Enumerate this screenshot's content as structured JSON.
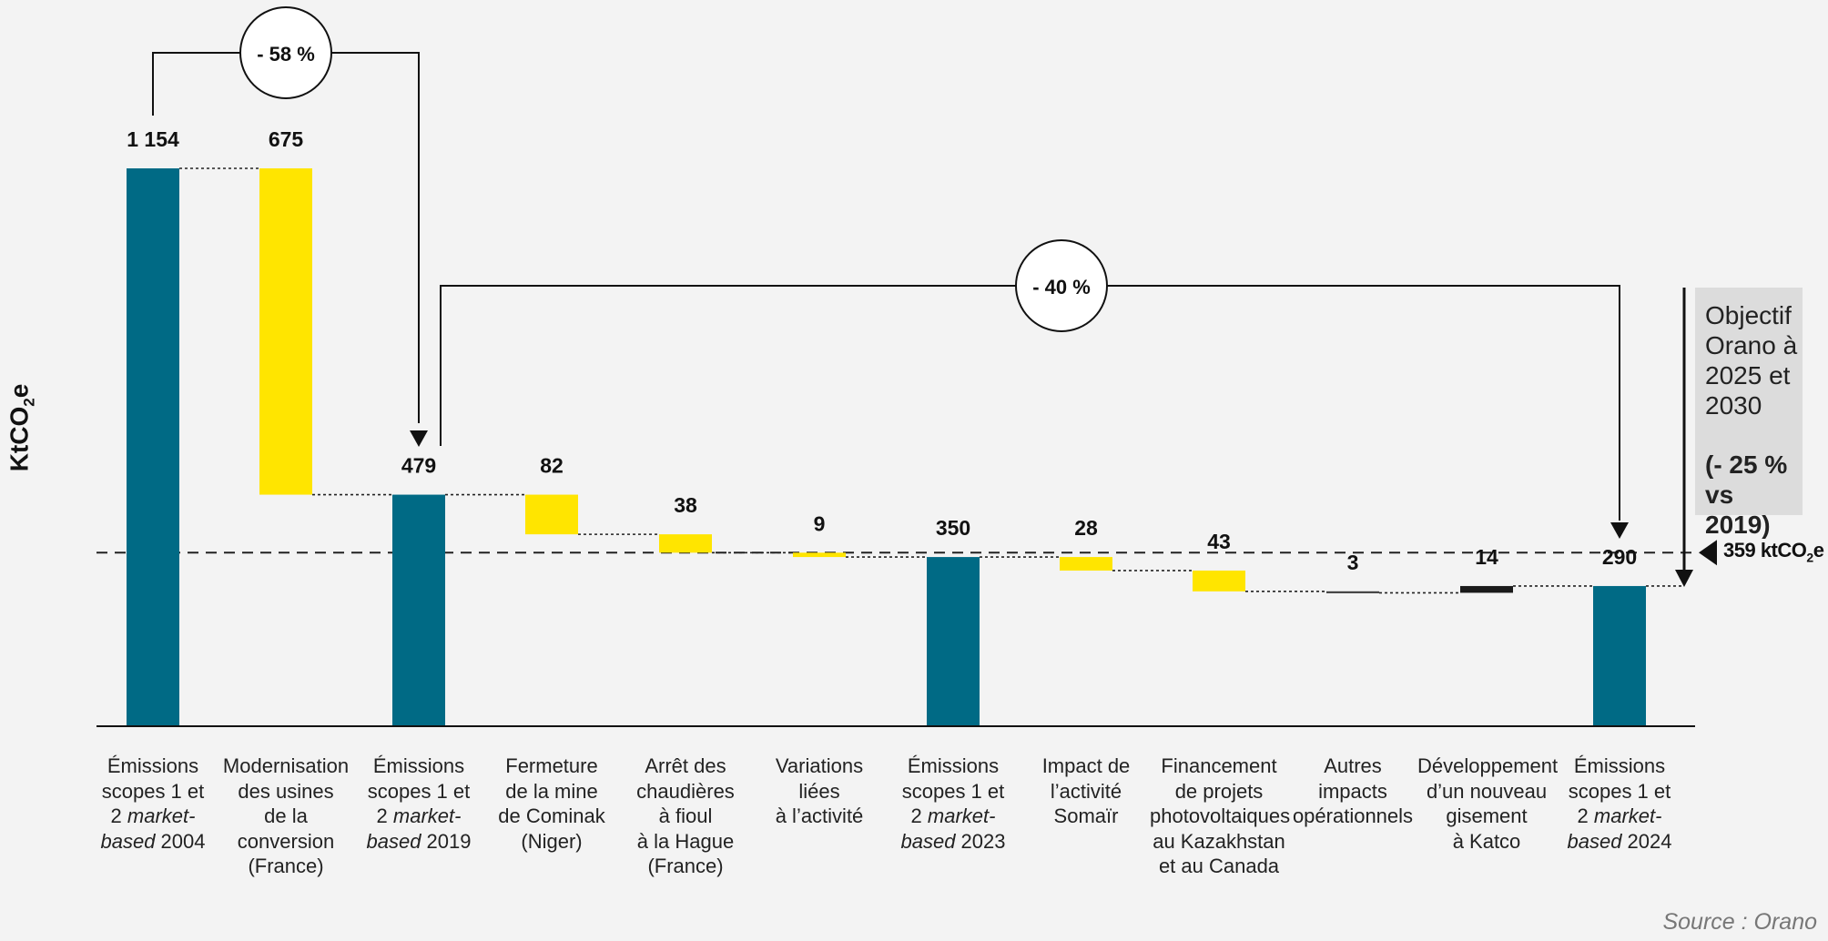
{
  "chart_data": {
    "type": "bar",
    "subtype": "waterfall",
    "ylabel": "KtCO2e",
    "categories": [
      {
        "label": "Émissions\nscopes 1 et\n2 ",
        "label_italic": "market-",
        "label_italic2": "based",
        "label_tail": " 2004",
        "value": 1154,
        "display": "1 154",
        "kind": "total"
      },
      {
        "label": "Modernisation\ndes usines\nde la\nconversion\n(France)",
        "value": 675,
        "display": "675",
        "kind": "decrease"
      },
      {
        "label": "Émissions\nscopes 1 et\n2 ",
        "label_italic": "market-",
        "label_italic2": "based",
        "label_tail": " 2019",
        "value": 479,
        "display": "479",
        "kind": "total"
      },
      {
        "label": "Fermeture\nde la mine\nde Cominak\n(Niger)",
        "value": 82,
        "display": "82",
        "kind": "decrease"
      },
      {
        "label": "Arrêt des\nchaudières\nà fioul\nà la Hague\n(France)",
        "value": 38,
        "display": "38",
        "kind": "decrease"
      },
      {
        "label": "Variations\nliées\nà l’activité",
        "value": 9,
        "display": "9",
        "kind": "decrease"
      },
      {
        "label": "Émissions\nscopes 1 et\n2 ",
        "label_italic": "market-",
        "label_italic2": "based",
        "label_tail": " 2023",
        "value": 350,
        "display": "350",
        "kind": "total"
      },
      {
        "label": "Impact de\nl’activité\nSomaïr",
        "value": 28,
        "display": "28",
        "kind": "decrease"
      },
      {
        "label": "Financement\nde projets\nphotovoltaiques\nau Kazakhstan\net au Canada",
        "value": 43,
        "display": "43",
        "kind": "decrease"
      },
      {
        "label": "Autres\nimpacts\nopérationnels",
        "value": 3,
        "display": "3",
        "kind": "decrease-other"
      },
      {
        "label": "Développement\nd’un nouveau\ngisement\nà Katco",
        "value": 14,
        "display": "14",
        "kind": "increase"
      },
      {
        "label": "Émissions\nscopes 1 et\n2 ",
        "label_italic": "market-",
        "label_italic2": "based",
        "label_tail": " 2024",
        "value": 290,
        "display": "290",
        "kind": "total"
      }
    ],
    "reference_line": {
      "value": 359,
      "label": "359 ktCO",
      "label_sub": "2",
      "label_tail": "e"
    },
    "annotations": [
      {
        "text": "- 58 %",
        "from": 0,
        "to": 2
      },
      {
        "text": "- 40 %",
        "from": 2,
        "to": 11
      }
    ],
    "target": {
      "line1": "Objectif Orano à 2025 et 2030",
      "line2": "(- 25 % vs 2019)"
    },
    "ylim": [
      0,
      1154
    ],
    "colors": {
      "total": "#006a85",
      "decrease": "#ffe500",
      "increase": "#1a1a1a",
      "other": "#333333"
    }
  },
  "source": "Source : Orano"
}
